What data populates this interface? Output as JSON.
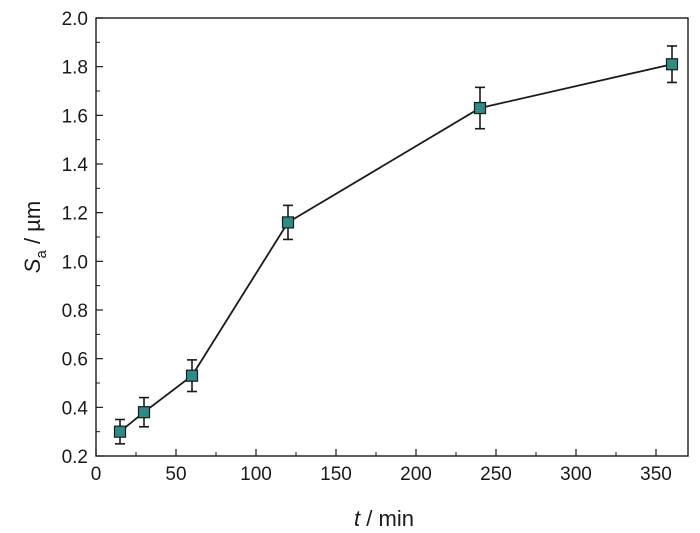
{
  "chart_data": {
    "type": "line",
    "title": "",
    "xlabel": {
      "symbol": "t",
      "rest": " / min"
    },
    "ylabel": {
      "symbol": "S",
      "subscript": "a",
      "rest": " / µm"
    },
    "xlim": [
      0,
      370
    ],
    "ylim": [
      0.2,
      2.0
    ],
    "x_ticks": [
      "0",
      "50",
      "100",
      "150",
      "200",
      "250",
      "300",
      "350"
    ],
    "y_ticks": [
      "0.2",
      "0.4",
      "0.6",
      "0.8",
      "1.0",
      "1.2",
      "1.4",
      "1.6",
      "1.8",
      "2.0"
    ],
    "grid": false,
    "legend": "none",
    "marker": "square",
    "colors": {
      "marker_fill": "#2e8b88",
      "marker_edge": "#1a1a1a",
      "line": "#1a1a1a"
    },
    "series": [
      {
        "x": [
          15,
          30,
          60,
          120,
          240,
          360
        ],
        "y": [
          0.3,
          0.38,
          0.53,
          1.16,
          1.63,
          1.81
        ],
        "yerr": [
          0.05,
          0.06,
          0.065,
          0.07,
          0.085,
          0.075
        ]
      }
    ]
  }
}
